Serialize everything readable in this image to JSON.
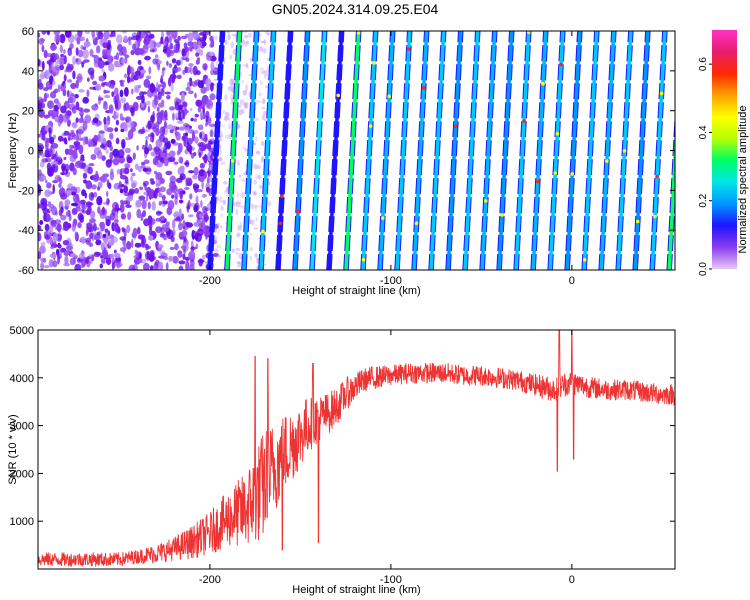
{
  "figure": {
    "title": "GN05.2024.314.09.25.E04"
  },
  "chart_data": [
    {
      "type": "heatmap",
      "xlabel": "Height of straight line (km)",
      "ylabel": "Frequency (Hz)",
      "xlim": [
        -295,
        57
      ],
      "ylim": [
        -60,
        60
      ],
      "x_ticks": [
        -200,
        -100,
        0
      ],
      "y_ticks": [
        -60,
        -40,
        -20,
        0,
        20,
        40,
        60
      ],
      "colorbar": {
        "label": "Normalized spectral amplitude",
        "range": [
          0.0,
          0.7
        ],
        "ticks": [
          0.0,
          0.2,
          0.4,
          0.6
        ],
        "colors": [
          "#e6c8f5",
          "#8c3cf0",
          "#1e14ff",
          "#0096ff",
          "#00e6e6",
          "#00ff64",
          "#b4ff00",
          "#ffff00",
          "#ffa000",
          "#ff2800",
          "#e61e6e",
          "#ff32c8"
        ]
      },
      "noise_region": [
        -295,
        -200
      ],
      "streaks": {
        "first_x_at_bottom": -200,
        "spacing_km": 9.4,
        "count": 28,
        "drift_km_over_frequency_range": 7,
        "color_sequence": [
          "#1e14ff",
          "#00ff64",
          "#00b4ff",
          "#00c8ff",
          "#1e14ff",
          "#0096ff",
          "#00e6e6",
          "#1e14ff",
          "#00ff64",
          "#00c8ff",
          "#00b4ff",
          "#00c8ff",
          "#00b4ff",
          "#00c8ff",
          "#0096ff",
          "#00c8ff",
          "#00b4ff",
          "#0096ff",
          "#00c8ff",
          "#00b4ff",
          "#00c8ff",
          "#0096ff",
          "#00c8ff",
          "#00b4ff",
          "#00c8ff",
          "#0096ff",
          "#00c8ff",
          "#00ff64"
        ]
      }
    },
    {
      "type": "line",
      "xlabel": "Height of straight line (km)",
      "ylabel": "SNR (10 * v/v)",
      "xlim": [
        -295,
        57
      ],
      "ylim": [
        0,
        5000
      ],
      "x_ticks": [
        -200,
        -100,
        0
      ],
      "y_ticks": [
        1000,
        2000,
        3000,
        4000,
        5000
      ],
      "series": [
        {
          "color": "#ee3333",
          "x": [
            -295,
            -270,
            -250,
            -240,
            -230,
            -220,
            -210,
            -200,
            -190,
            -180,
            -175,
            -170,
            -165,
            -160,
            -155,
            -150,
            -145,
            -140,
            -135,
            -130,
            -125,
            -120,
            -115,
            -110,
            -100,
            -90,
            -80,
            -70,
            -60,
            -50,
            -40,
            -30,
            -20,
            -15,
            -10,
            -5,
            0,
            5,
            10,
            20,
            30,
            40,
            50,
            57
          ],
          "y": [
            200,
            200,
            200,
            260,
            320,
            420,
            560,
            750,
            1050,
            1250,
            1500,
            1750,
            2100,
            2350,
            2600,
            2800,
            3050,
            3150,
            3250,
            3400,
            3650,
            3800,
            3950,
            4000,
            4050,
            4100,
            4100,
            4100,
            4050,
            4050,
            4000,
            3950,
            3850,
            3800,
            3750,
            3850,
            3900,
            3850,
            3800,
            3750,
            3750,
            3700,
            3650,
            3650
          ],
          "noise_amplitude": [
            150,
            150,
            150,
            150,
            200,
            250,
            350,
            450,
            600,
            800,
            1000,
            1200,
            1000,
            900,
            800,
            700,
            600,
            500,
            450,
            400,
            350,
            300,
            250,
            250,
            220,
            220,
            220,
            220,
            220,
            220,
            220,
            220,
            230,
            260,
            260,
            260,
            260,
            240,
            230,
            220,
            220,
            220,
            220,
            220
          ],
          "spikes": [
            {
              "x": -175,
              "y": 4450
            },
            {
              "x": -168,
              "y": 4400
            },
            {
              "x": -160,
              "y": 400
            },
            {
              "x": -143,
              "y": 4300
            },
            {
              "x": -140,
              "y": 550
            },
            {
              "x": -8,
              "y": 2050
            },
            {
              "x": -7,
              "y": 5000
            },
            {
              "x": 0,
              "y": 5000
            },
            {
              "x": 1,
              "y": 2300
            }
          ]
        }
      ]
    }
  ]
}
